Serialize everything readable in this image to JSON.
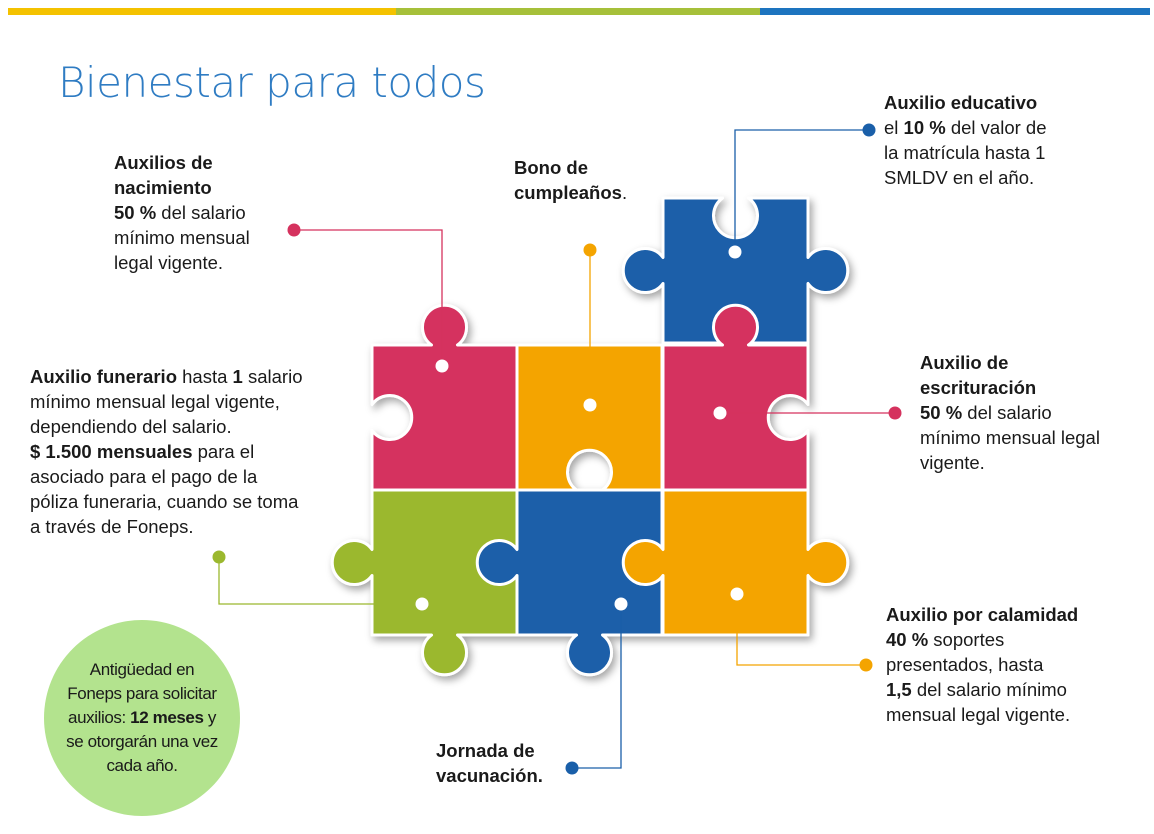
{
  "colors": {
    "bar_yellow": "#f4c200",
    "bar_green": "#a6c03a",
    "bar_blue": "#1d74bf",
    "title": "#2f7cc3",
    "pink": "#d5325e",
    "orange": "#f4a400",
    "blue": "#1a5fa9",
    "green": "#9bb82e",
    "badge": "#b3e38e"
  },
  "page_title": "Bienestar para todos",
  "blocks": {
    "nacimiento": {
      "head1": "Auxilios de",
      "head2": "nacimiento",
      "pct": "50 %",
      "line1_rest": " del salario",
      "line2": "mínimo mensual",
      "line3": "legal vigente."
    },
    "cumpleanos": {
      "head1": "Bono de",
      "head2": "cumpleaños",
      "dot": "."
    },
    "educativo": {
      "head": "Auxilio educativo",
      "pre": "el ",
      "pct": "10 %",
      "line1_rest": " del valor de",
      "line2": "la matrícula hasta 1",
      "line3": "SMLDV en el año."
    },
    "escrituracion": {
      "head1": "Auxilio de",
      "head2": "escrituración",
      "pct": "50 %",
      "line1_rest": " del salario",
      "line2": "mínimo mensual legal",
      "line3": "vigente."
    },
    "funerario": {
      "head": "Auxilio funerario",
      "l1_mid": " hasta ",
      "l1_num": "1",
      "l1_end": " salario",
      "line2": "mínimo mensual legal vigente,",
      "line3": "dependiendo del salario.",
      "amount": "$ 1.500 mensuales",
      "l4_end": " para el",
      "line5": "asociado para el pago de la",
      "line6": "póliza funeraria, cuando se toma",
      "line7": "a través de Foneps."
    },
    "calamidad": {
      "head": "Auxilio por calamidad",
      "pct": "40 %",
      "line1_rest": " soportes",
      "line2": "presentados, hasta",
      "num": "1,5",
      "line3_rest": " del salario mínimo",
      "line4": "mensual legal vigente."
    },
    "vacunacion": {
      "head1": "Jornada de",
      "head2": "vacunación."
    }
  },
  "badge": {
    "line1": "Antigüedad en",
    "line2": "Foneps para solicitar",
    "line3_pre": "auxilios: ",
    "line3_bold": "12 meses",
    "line3_post": " y",
    "line4": "se otorgarán una vez",
    "line5": "cada año."
  }
}
